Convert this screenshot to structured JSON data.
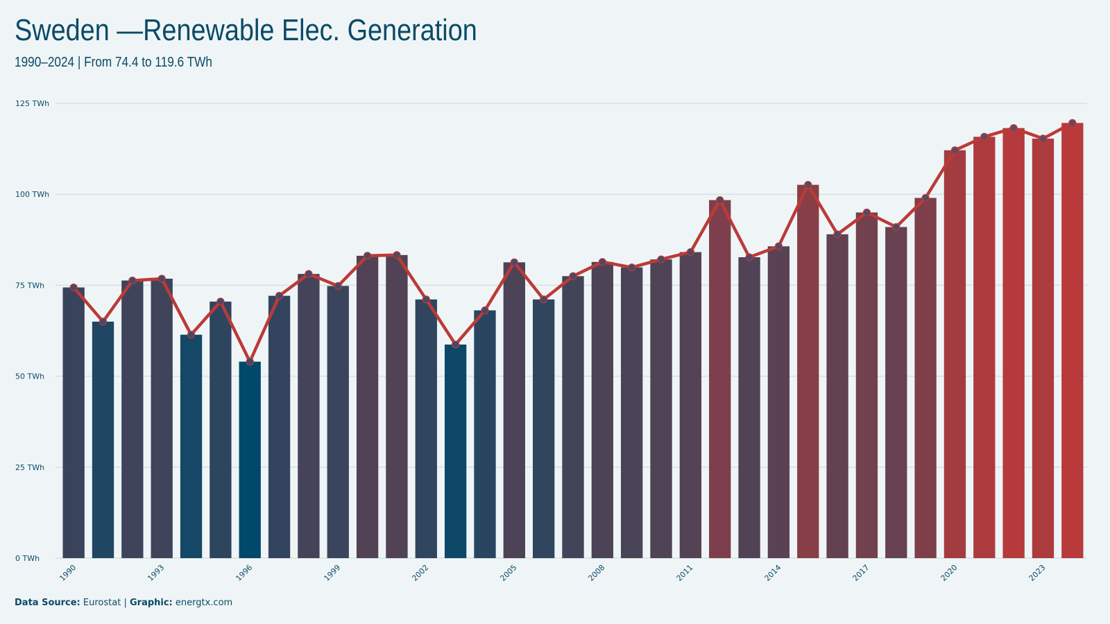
{
  "header": {
    "title": "Sweden —Renewable Elec. Generation",
    "subtitle": "1990–2024 | From 74.4 to 119.6 TWh"
  },
  "footer": {
    "source_label": "Data Source:",
    "source_value": "Eurostat",
    "separator": "|",
    "graphic_label": "Graphic:",
    "graphic_value": "energtx.com"
  },
  "colors": {
    "background": "#eff5f6",
    "text": "#0b4a67",
    "low": "#00496b",
    "high": "#b83a3b",
    "line": "#bb3a38",
    "grid": "#d5e1e4"
  },
  "chart_data": {
    "type": "bar",
    "categories": [
      "1990",
      "1991",
      "1992",
      "1993",
      "1994",
      "1995",
      "1996",
      "1997",
      "1998",
      "1999",
      "2000",
      "2001",
      "2002",
      "2003",
      "2004",
      "2005",
      "2006",
      "2007",
      "2008",
      "2009",
      "2010",
      "2011",
      "2012",
      "2013",
      "2014",
      "2015",
      "2016",
      "2017",
      "2018",
      "2019",
      "2020",
      "2021",
      "2022",
      "2023",
      "2024"
    ],
    "x_tick_labels": [
      "1990",
      "1993",
      "1996",
      "1999",
      "2002",
      "2005",
      "2008",
      "2011",
      "2014",
      "2017",
      "2020",
      "2023"
    ],
    "series": [
      {
        "values": [
          74.4,
          65.0,
          76.3,
          76.8,
          61.4,
          70.5,
          54.0,
          72.1,
          78.1,
          74.8,
          83.1,
          83.3,
          71.1,
          58.7,
          68.1,
          81.3,
          71.1,
          77.5,
          81.4,
          79.9,
          82.1,
          84.1,
          98.4,
          82.7,
          85.7,
          102.6,
          89.0,
          95.0,
          91.0,
          99.0,
          112.1,
          115.8,
          118.2,
          115.3,
          119.6
        ]
      }
    ],
    "y_ticks": [
      0,
      25,
      50,
      75,
      100,
      125
    ],
    "y_tick_labels": [
      "0 TWh",
      "25 TWh",
      "50 TWh",
      "75 TWh",
      "100 TWh",
      "125 TWh"
    ],
    "ylim": [
      0,
      125
    ],
    "overlay": "line with markers",
    "grid": "horizontal",
    "legend": "none"
  }
}
